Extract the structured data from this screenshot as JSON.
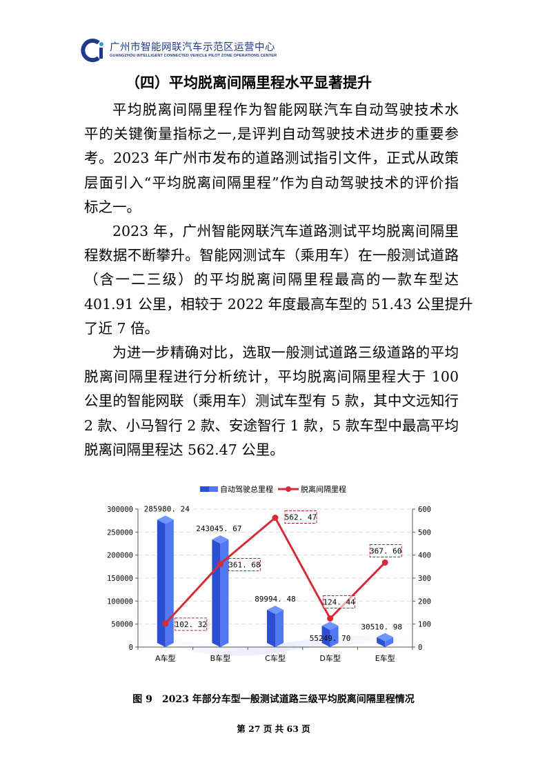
{
  "header": {
    "logo_cn": "广州市智能网联汽车示范区运营中心",
    "logo_en": "GUANGZHOU INTELLIGENT CONNECTED VEHICLE PILOT ZONE OPERATIONS CENTER"
  },
  "heading": "（四）平均脱离间隔里程水平显著提升",
  "paragraphs": [
    [
      "平均脱离间隔里程作为智能网联汽车自动驾驶技术水",
      "平的关键衡量指标之一,是评判自动驾驶技术进步的重要参",
      "考。2023 年广州市发布的道路测试指引文件，正式从政策",
      "层面引入“平均脱离间隔里程”作为自动驾驶技术的评价指",
      "标之一。"
    ],
    [
      "2023 年，广州智能网联汽车道路测试平均脱离间隔里",
      "程数据不断攀升。智能网测试车（乘用车）在一般测试道路",
      "（含一二三级）的平均脱离间隔里程最高的一款车型达",
      "401.91 公里，相较于 2022 年度最高车型的 51.43 公里提升",
      "了近 7 倍。"
    ],
    [
      "为进一步精确对比，选取一般测试道路三级道路的平均",
      "脱离间隔里程进行分析统计，平均脱离间隔里程大于 100",
      "公里的智能网联（乘用车）测试车型有 5 款，其中文远知行",
      "2 款、小马智行 2 款、安途智行 1 款，5 款车型中最高平均",
      "脱离间隔里程达 562.47 公里。"
    ]
  ],
  "chart_data": {
    "type": "bar+line",
    "categories": [
      "A车型",
      "B车型",
      "C车型",
      "D车型",
      "E车型"
    ],
    "series": [
      {
        "name": "自动驾驶总里程",
        "type": "bar",
        "axis": "left",
        "values": [
          285980.24,
          243045.67,
          89994.48,
          55249.7,
          30510.98
        ],
        "labels": [
          "285980. 24",
          "243045. 67",
          "89994. 48",
          "55249. 70",
          "30510. 98"
        ],
        "color": "#3b5fe0"
      },
      {
        "name": "脱离间隔里程",
        "type": "line",
        "axis": "right",
        "values": [
          102.32,
          361.68,
          562.47,
          124.44,
          367.6
        ],
        "labels": [
          "102. 32",
          "361. 68",
          "562. 47",
          "124. 44",
          "367. 60"
        ],
        "color": "#d42a3a"
      }
    ],
    "y_left": {
      "range": [
        0,
        300000
      ],
      "ticks": [
        "0",
        "50000",
        "100000",
        "150000",
        "200000",
        "250000",
        "300000"
      ]
    },
    "y_right": {
      "range": [
        0,
        600
      ],
      "ticks": [
        "0",
        "100",
        "200",
        "300",
        "400",
        "500",
        "600"
      ]
    },
    "grid": "horizontal dashed",
    "legend": "top-center"
  },
  "caption": "图 9　2023 年部分车型一般测试道路三级平均脱离间隔里程情况",
  "footer": "第 27 页 共 63 页"
}
